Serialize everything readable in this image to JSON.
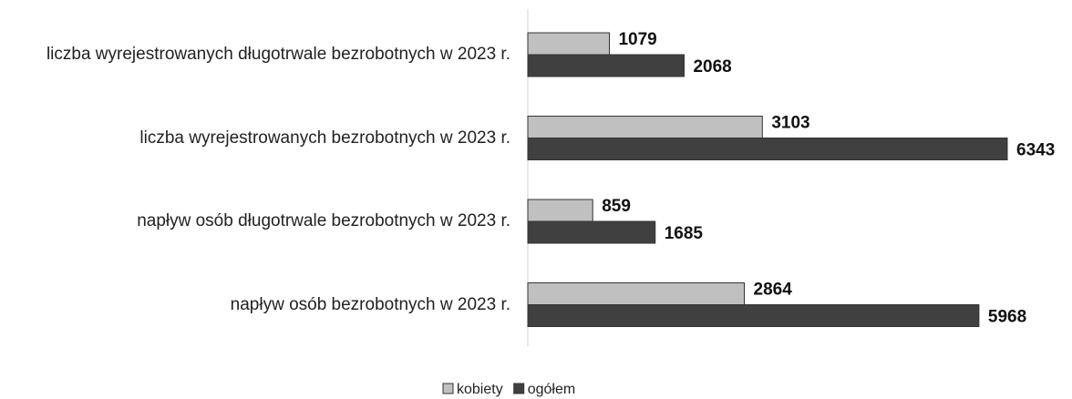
{
  "chart_data": {
    "type": "bar",
    "orientation": "horizontal",
    "categories": [
      "liczba wyrejestrowanych długotrwale bezrobotnych w 2023 r.",
      "liczba wyrejestrowanych bezrobotnych w 2023 r.",
      "napływ osób długotrwale bezrobotnych w 2023 r.",
      "napływ osób bezrobotnych w 2023 r."
    ],
    "series": [
      {
        "name": "kobiety",
        "color": "#c0c0c0",
        "values": [
          1079,
          3103,
          859,
          2864
        ]
      },
      {
        "name": "ogółem",
        "color": "#404040",
        "values": [
          2068,
          6343,
          1685,
          5968
        ]
      }
    ],
    "legend": "bottom"
  }
}
